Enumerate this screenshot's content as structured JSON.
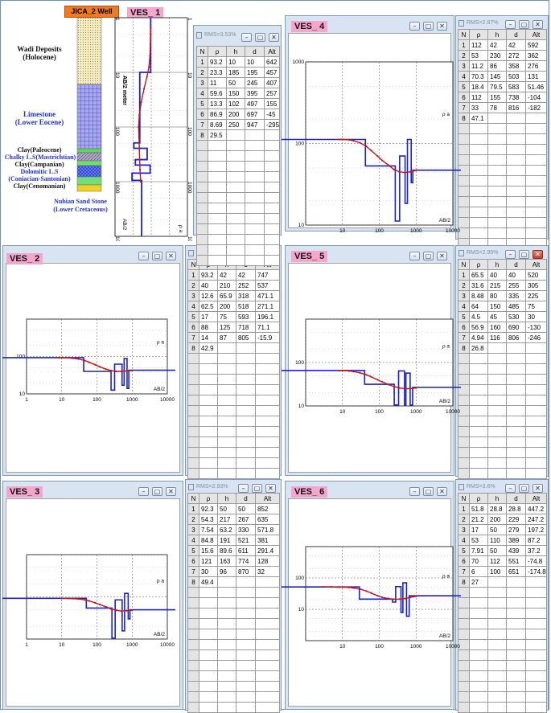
{
  "well": {
    "title": "JICA_2 Well",
    "units": [
      {
        "label": "Wadi Deposits\n(Holocene)",
        "color": "#111111"
      },
      {
        "label": "Limestone\n(Lower Eocene)",
        "color": "#2233cc"
      },
      {
        "label": "Clay(Paleocene)",
        "color": "#111111"
      },
      {
        "label": "Chalky L.S(Mastrichtian)",
        "color": "#2233cc"
      },
      {
        "label": "Clay(Campanian)",
        "color": "#111111"
      },
      {
        "label": "Dolomitic L.S\n(Coniacian-Santonian)",
        "color": "#2233cc"
      },
      {
        "label": "Clay(Cenomanian)",
        "color": "#111111"
      },
      {
        "label": "Nubian Sand Stone\n(Lower Cretaceous)",
        "color": "#2233cc"
      }
    ]
  },
  "colors": {
    "model": "#1a22cc",
    "field": "#cc1111",
    "window": "#d8e4f2",
    "label": "#f4a6cc",
    "well_title": "#f07a22"
  },
  "columns": [
    "N",
    "ρ",
    "h",
    "d",
    "Alt"
  ],
  "chart_data": [
    {
      "id": "VES_1",
      "type": "line",
      "title": "VES_ 1",
      "xlabel": "ρ a",
      "ylabel": "AB/2 meter",
      "axis_corner": "AB/2",
      "orientation": "vertical-depth",
      "scale": "log-log",
      "xlim": [
        1,
        10000
      ],
      "ylim": [
        1,
        10000
      ],
      "ticks": [
        "1",
        "10",
        "100",
        "1000",
        "10000"
      ],
      "grid": true,
      "rms": "RMS=3.53%",
      "layers": [
        {
          "n": "1",
          "rho": "93.2",
          "h": "10",
          "d": "10",
          "alt": "642"
        },
        {
          "n": "2",
          "rho": "23.3",
          "h": "185",
          "d": "195",
          "alt": "457"
        },
        {
          "n": "3",
          "rho": "11",
          "h": "50",
          "d": "245",
          "alt": "407"
        },
        {
          "n": "4",
          "rho": "59.6",
          "h": "150",
          "d": "395",
          "alt": "257"
        },
        {
          "n": "5",
          "rho": "13.3",
          "h": "102",
          "d": "497",
          "alt": "155"
        },
        {
          "n": "6",
          "rho": "86.9",
          "h": "200",
          "d": "697",
          "alt": "-45"
        },
        {
          "n": "7",
          "rho": "8.69",
          "h": "250",
          "d": "947",
          "alt": "-295"
        },
        {
          "n": "8",
          "rho": "29.5",
          "h": "",
          "d": "",
          "alt": ""
        }
      ],
      "field": {
        "ab2": [
          1.5,
          2,
          3,
          5,
          8,
          12,
          20,
          35,
          60,
          100,
          150,
          250,
          400,
          600,
          1000
        ],
        "rho": [
          93,
          92,
          90,
          85,
          75,
          58,
          40,
          28,
          22,
          20,
          21,
          22,
          23,
          24,
          26
        ]
      }
    },
    {
      "id": "VES_2",
      "type": "line",
      "title": "VES_ 2",
      "xlabel": "AB/2",
      "ylabel": "ρ a",
      "scale": "log-log",
      "xlim": [
        1,
        10000
      ],
      "ylim": [
        10,
        1000
      ],
      "xticks": [
        "1",
        "10",
        "100",
        "1000",
        "10000"
      ],
      "yticks": [
        "10",
        "100"
      ],
      "grid": true,
      "rms": "RMS=2.7%",
      "layers": [
        {
          "n": "1",
          "rho": "93.2",
          "h": "42",
          "d": "42",
          "alt": "747"
        },
        {
          "n": "2",
          "rho": "40",
          "h": "210",
          "d": "252",
          "alt": "537"
        },
        {
          "n": "3",
          "rho": "12.6",
          "h": "65.9",
          "d": "318",
          "alt": "471.1"
        },
        {
          "n": "4",
          "rho": "62.5",
          "h": "200",
          "d": "518",
          "alt": "271.1"
        },
        {
          "n": "5",
          "rho": "17",
          "h": "75",
          "d": "593",
          "alt": "196.1"
        },
        {
          "n": "6",
          "rho": "88",
          "h": "125",
          "d": "718",
          "alt": "71.1"
        },
        {
          "n": "7",
          "rho": "14",
          "h": "87",
          "d": "805",
          "alt": "-15.9"
        },
        {
          "n": "8",
          "rho": "42.9",
          "h": "",
          "d": "",
          "alt": ""
        }
      ],
      "field": {
        "ab2": [
          8,
          10,
          15,
          20,
          30,
          45,
          60,
          90,
          120,
          180,
          250,
          350,
          500,
          700,
          1000
        ],
        "rho": [
          93,
          93,
          92,
          90,
          86,
          78,
          70,
          60,
          53,
          46,
          42,
          40,
          40,
          41,
          42
        ]
      }
    },
    {
      "id": "VES_3",
      "type": "line",
      "title": "VES_ 3",
      "xlabel": "AB/2",
      "ylabel": "ρ a",
      "scale": "log-log",
      "xlim": [
        1,
        10000
      ],
      "ylim": [
        10,
        1000
      ],
      "xticks": [
        "1",
        "10",
        "100",
        "1000",
        "10000"
      ],
      "yticks": [],
      "grid": true,
      "rms": "RMS=2.93%",
      "layers": [
        {
          "n": "1",
          "rho": "92.3",
          "h": "50",
          "d": "50",
          "alt": "852"
        },
        {
          "n": "2",
          "rho": "54.3",
          "h": "217",
          "d": "267",
          "alt": "635"
        },
        {
          "n": "3",
          "rho": "7.54",
          "h": "63.2",
          "d": "330",
          "alt": "571.8"
        },
        {
          "n": "4",
          "rho": "84.8",
          "h": "191",
          "d": "521",
          "alt": "381"
        },
        {
          "n": "5",
          "rho": "15.6",
          "h": "89.6",
          "d": "611",
          "alt": "291.4"
        },
        {
          "n": "6",
          "rho": "121",
          "h": "163",
          "d": "774",
          "alt": "128"
        },
        {
          "n": "7",
          "rho": "30",
          "h": "96",
          "d": "870",
          "alt": "32"
        },
        {
          "n": "8",
          "rho": "49.4",
          "h": "",
          "d": "",
          "alt": ""
        }
      ],
      "field": {
        "ab2": [
          10,
          15,
          20,
          30,
          45,
          60,
          90,
          120,
          180,
          250,
          350,
          500,
          700,
          1000
        ],
        "rho": [
          92,
          92,
          91,
          89,
          85,
          80,
          72,
          66,
          58,
          52,
          48,
          46,
          47,
          48
        ]
      }
    },
    {
      "id": "VES_4",
      "type": "line",
      "title": "VES_ 4",
      "xlabel": "AB/2",
      "ylabel": "ρ a",
      "scale": "log-log",
      "xlim": [
        1,
        10000
      ],
      "ylim": [
        10,
        1000
      ],
      "xticks": [
        "10",
        "100",
        "1000",
        "10000"
      ],
      "yticks": [
        "1000",
        "100",
        "10"
      ],
      "grid": true,
      "rms": "RMS=2.87%",
      "layers": [
        {
          "n": "1",
          "rho": "112",
          "h": "42",
          "d": "42",
          "alt": "592"
        },
        {
          "n": "2",
          "rho": "53",
          "h": "230",
          "d": "272",
          "alt": "362"
        },
        {
          "n": "3",
          "rho": "11.2",
          "h": "86",
          "d": "358",
          "alt": "276"
        },
        {
          "n": "4",
          "rho": "70.3",
          "h": "145",
          "d": "503",
          "alt": "131"
        },
        {
          "n": "5",
          "rho": "18.4",
          "h": "79.5",
          "d": "583",
          "alt": "51.46"
        },
        {
          "n": "6",
          "rho": "112",
          "h": "155",
          "d": "738",
          "alt": "-104"
        },
        {
          "n": "7",
          "rho": "33",
          "h": "78",
          "d": "816",
          "alt": "-182"
        },
        {
          "n": "8",
          "rho": "47.1",
          "h": "",
          "d": "",
          "alt": ""
        }
      ],
      "field": {
        "ab2": [
          8,
          10,
          15,
          20,
          30,
          45,
          60,
          90,
          120,
          180,
          250,
          350,
          500,
          700,
          1000
        ],
        "rho": [
          112,
          112,
          111,
          108,
          102,
          92,
          82,
          70,
          62,
          54,
          48,
          45,
          44,
          45,
          47
        ]
      }
    },
    {
      "id": "VES_5",
      "type": "line",
      "title": "VES_ 5",
      "xlabel": "AB/2",
      "ylabel": "ρ a",
      "scale": "log-log",
      "xlim": [
        1,
        10000
      ],
      "ylim": [
        10,
        1000
      ],
      "xticks": [
        "10",
        "100",
        "1000",
        "10000"
      ],
      "yticks": [
        "100",
        "10"
      ],
      "grid": true,
      "rms": "RMS=2.95%",
      "layers": [
        {
          "n": "1",
          "rho": "65.5",
          "h": "40",
          "d": "40",
          "alt": "520"
        },
        {
          "n": "2",
          "rho": "31.6",
          "h": "215",
          "d": "255",
          "alt": "305"
        },
        {
          "n": "3",
          "rho": "8.48",
          "h": "80",
          "d": "335",
          "alt": "225"
        },
        {
          "n": "4",
          "rho": "64",
          "h": "150",
          "d": "485",
          "alt": "75"
        },
        {
          "n": "5",
          "rho": "4.5",
          "h": "45",
          "d": "530",
          "alt": "30"
        },
        {
          "n": "6",
          "rho": "56.9",
          "h": "160",
          "d": "690",
          "alt": "-130"
        },
        {
          "n": "7",
          "rho": "4.94",
          "h": "116",
          "d": "806",
          "alt": "-246"
        },
        {
          "n": "8",
          "rho": "26.8",
          "h": "",
          "d": "",
          "alt": ""
        }
      ],
      "field": {
        "ab2": [
          8,
          10,
          15,
          20,
          30,
          45,
          60,
          90,
          120,
          180,
          250,
          350,
          500,
          700,
          1000
        ],
        "rho": [
          65,
          65,
          64,
          62,
          58,
          52,
          47,
          40,
          36,
          31,
          28,
          26,
          25,
          25,
          26
        ]
      }
    },
    {
      "id": "VES_6",
      "type": "line",
      "title": "VES_ 6",
      "xlabel": "AB/2",
      "ylabel": "ρ a",
      "scale": "log-log",
      "xlim": [
        1,
        10000
      ],
      "ylim": [
        1,
        1000
      ],
      "xticks": [
        "10",
        "100",
        "1000",
        "10000"
      ],
      "yticks": [
        "100",
        "10"
      ],
      "grid": true,
      "rms": "RMS=3.6%",
      "layers": [
        {
          "n": "1",
          "rho": "51.8",
          "h": "28.8",
          "d": "28.8",
          "alt": "447.2"
        },
        {
          "n": "2",
          "rho": "21.2",
          "h": "200",
          "d": "229",
          "alt": "247.2"
        },
        {
          "n": "3",
          "rho": "17",
          "h": "50",
          "d": "279",
          "alt": "197.2"
        },
        {
          "n": "4",
          "rho": "53",
          "h": "110",
          "d": "389",
          "alt": "87.2"
        },
        {
          "n": "5",
          "rho": "7.91",
          "h": "50",
          "d": "439",
          "alt": "37.2"
        },
        {
          "n": "6",
          "rho": "70",
          "h": "112",
          "d": "551",
          "alt": "-74.8"
        },
        {
          "n": "7",
          "rho": "6",
          "h": "100",
          "d": "651",
          "alt": "-174.8"
        },
        {
          "n": "8",
          "rho": "27",
          "h": "",
          "d": "",
          "alt": ""
        }
      ],
      "field": {
        "ab2": [
          3,
          5,
          8,
          10,
          15,
          20,
          30,
          45,
          60,
          90,
          120,
          180,
          250,
          350,
          500,
          700,
          1000
        ],
        "rho": [
          52,
          52,
          51,
          51,
          50,
          48,
          44,
          38,
          33,
          27,
          24,
          22,
          21,
          21,
          22,
          24,
          26
        ]
      }
    }
  ]
}
